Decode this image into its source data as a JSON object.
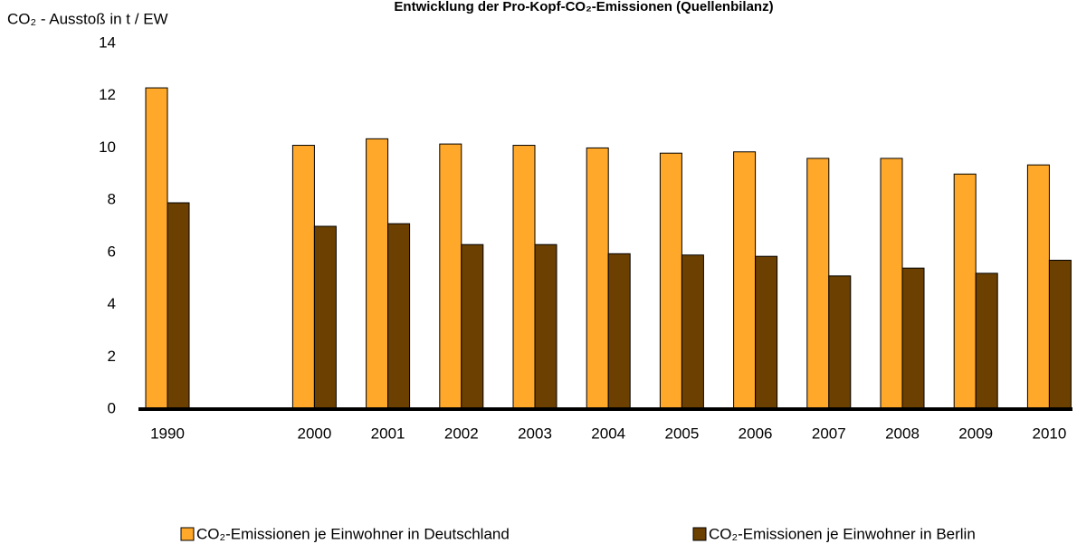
{
  "chart_data": {
    "type": "bar",
    "title": "Entwicklung der Pro-Kopf-CO₂-Emissionen (Quellenbilanz)",
    "y_label": "CO₂ - Ausstoß in t / EW",
    "categories": [
      "1990",
      null,
      "2000",
      "2001",
      "2002",
      "2003",
      "2004",
      "2005",
      "2006",
      "2007",
      "2008",
      "2009",
      "2010"
    ],
    "series": [
      {
        "name": "CO₂-Emissionen je Einwohner in Deutschland",
        "color": "#ffa82a",
        "values": [
          12.3,
          null,
          10.1,
          10.35,
          10.15,
          10.1,
          10.0,
          9.8,
          9.85,
          9.6,
          9.6,
          9.0,
          9.35
        ]
      },
      {
        "name": "CO₂-Emissionen je Einwohner in Berlin",
        "color": "#6b4000",
        "values": [
          7.9,
          null,
          7.0,
          7.1,
          6.3,
          6.3,
          5.95,
          5.9,
          5.85,
          5.1,
          5.4,
          5.2,
          5.7
        ]
      }
    ],
    "ylim": [
      0,
      14
    ],
    "yticks": [
      0,
      2,
      4,
      6,
      8,
      10,
      12,
      14
    ],
    "grid": false
  }
}
